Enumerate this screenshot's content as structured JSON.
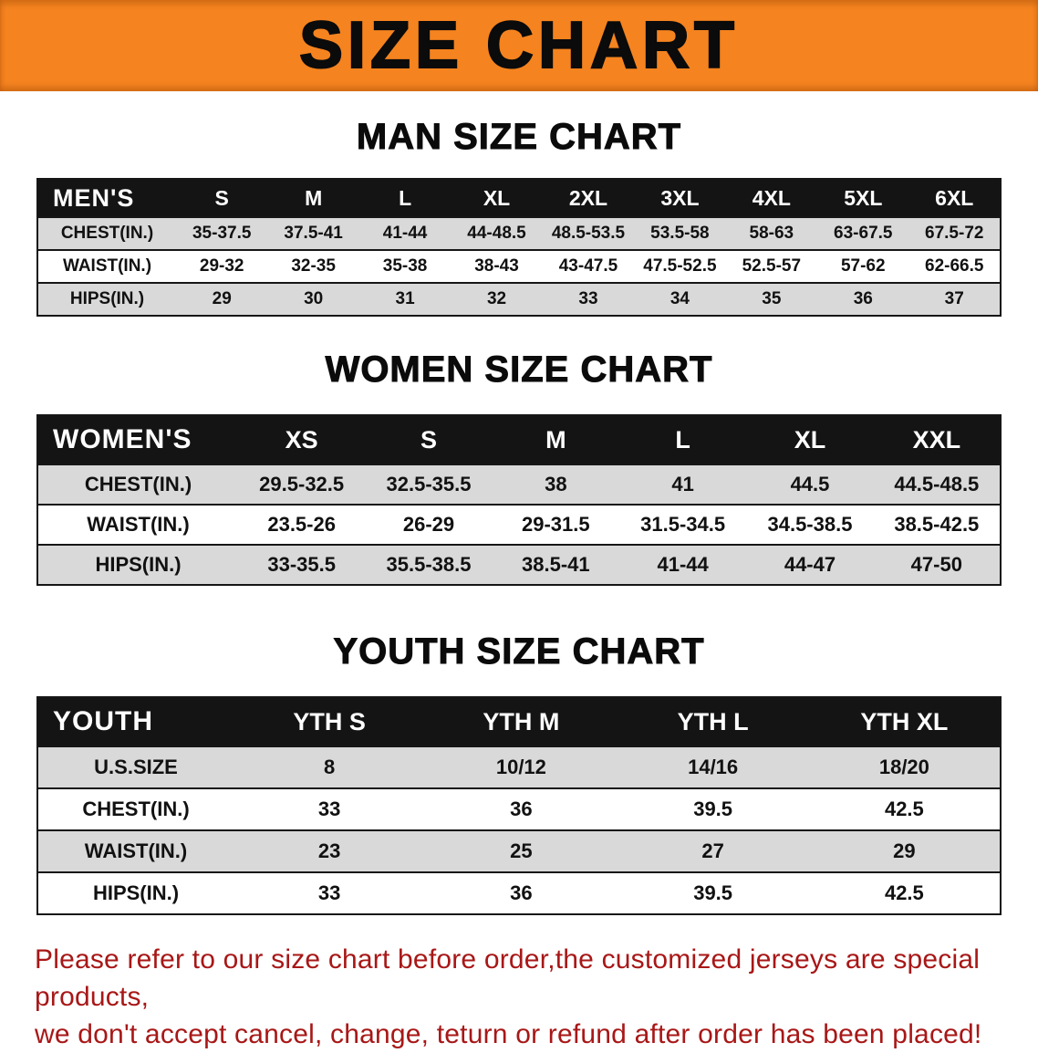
{
  "colors": {
    "banner_bg": "#f5831f",
    "header_bg": "#141414",
    "row_gray": "#d9d9d9",
    "disclaimer_color": "#a81717"
  },
  "banner": {
    "title": "SIZE CHART"
  },
  "sections": [
    {
      "heading": "MAN SIZE CHART",
      "table": {
        "header": [
          "MEN'S",
          "S",
          "M",
          "L",
          "XL",
          "2XL",
          "3XL",
          "4XL",
          "5XL",
          "6XL"
        ],
        "rows": [
          [
            "CHEST(IN.)",
            "35-37.5",
            "37.5-41",
            "41-44",
            "44-48.5",
            "48.5-53.5",
            "53.5-58",
            "58-63",
            "63-67.5",
            "67.5-72"
          ],
          [
            "WAIST(IN.)",
            "29-32",
            "32-35",
            "35-38",
            "38-43",
            "43-47.5",
            "47.5-52.5",
            "52.5-57",
            "57-62",
            "62-66.5"
          ],
          [
            "HIPS(IN.)",
            "29",
            "30",
            "31",
            "32",
            "33",
            "34",
            "35",
            "36",
            "37"
          ]
        ]
      }
    },
    {
      "heading": "WOMEN SIZE CHART",
      "table": {
        "header": [
          "WOMEN'S",
          "XS",
          "S",
          "M",
          "L",
          "XL",
          "XXL"
        ],
        "rows": [
          [
            "CHEST(IN.)",
            "29.5-32.5",
            "32.5-35.5",
            "38",
            "41",
            "44.5",
            "44.5-48.5"
          ],
          [
            "WAIST(IN.)",
            "23.5-26",
            "26-29",
            "29-31.5",
            "31.5-34.5",
            "34.5-38.5",
            "38.5-42.5"
          ],
          [
            "HIPS(IN.)",
            "33-35.5",
            "35.5-38.5",
            "38.5-41",
            "41-44",
            "44-47",
            "47-50"
          ]
        ]
      }
    },
    {
      "heading": "YOUTH SIZE CHART",
      "table": {
        "header": [
          "YOUTH",
          "YTH S",
          "YTH M",
          "YTH L",
          "YTH XL"
        ],
        "rows": [
          [
            "U.S.SIZE",
            "8",
            "10/12",
            "14/16",
            "18/20"
          ],
          [
            "CHEST(IN.)",
            "33",
            "36",
            "39.5",
            "42.5"
          ],
          [
            "WAIST(IN.)",
            "23",
            "25",
            "27",
            "29"
          ],
          [
            "HIPS(IN.)",
            "33",
            "36",
            "39.5",
            "42.5"
          ]
        ]
      }
    }
  ],
  "disclaimer": {
    "line1": "Please refer to our size chart before order,the customized jerseys are special products,",
    "line2": "we don't accept cancel, change, teturn or refund after order has been placed!"
  }
}
